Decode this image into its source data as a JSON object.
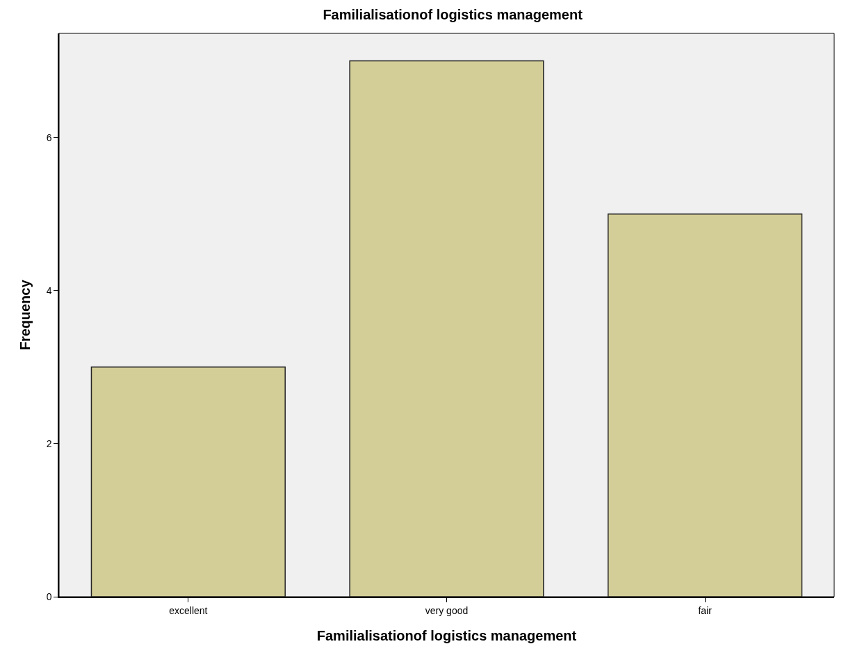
{
  "chart_data": {
    "type": "bar",
    "title": "Familialisationof logistics management",
    "xlabel": "Familialisationof logistics management",
    "ylabel": "Frequency",
    "categories": [
      "excellent",
      "very good",
      "fair"
    ],
    "values": [
      3,
      7,
      5
    ],
    "color": "#d3ce97",
    "ylim": [
      0,
      7.36
    ],
    "yticks": [
      0,
      2,
      4,
      6
    ],
    "grid": false
  }
}
